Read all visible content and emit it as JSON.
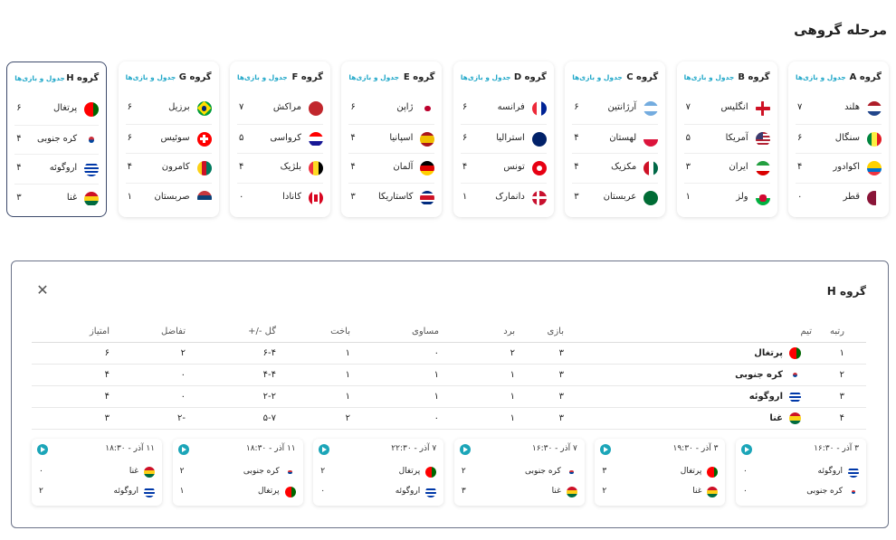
{
  "page_title": "مرحله گروهی",
  "group_link_label": "جدول و بازی‌ها",
  "groups": [
    {
      "name": "گروه A",
      "teams": [
        {
          "name": "هلند",
          "pts": "۷",
          "flag": "flag-netherlands"
        },
        {
          "name": "سنگال",
          "pts": "۶",
          "flag": "flag-senegal"
        },
        {
          "name": "اکوادور",
          "pts": "۴",
          "flag": "flag-ecuador"
        },
        {
          "name": "قطر",
          "pts": "۰",
          "flag": "flag-qatar"
        }
      ]
    },
    {
      "name": "گروه B",
      "teams": [
        {
          "name": "انگلیس",
          "pts": "۷",
          "flag": "flag-england"
        },
        {
          "name": "آمریکا",
          "pts": "۵",
          "flag": "flag-usa"
        },
        {
          "name": "ایران",
          "pts": "۳",
          "flag": "flag-iran"
        },
        {
          "name": "ولز",
          "pts": "۱",
          "flag": "flag-wales"
        }
      ]
    },
    {
      "name": "گروه C",
      "teams": [
        {
          "name": "آرژانتین",
          "pts": "۶",
          "flag": "flag-argentina"
        },
        {
          "name": "لهستان",
          "pts": "۴",
          "flag": "flag-poland"
        },
        {
          "name": "مکزیک",
          "pts": "۴",
          "flag": "flag-mexico"
        },
        {
          "name": "عربستان",
          "pts": "۳",
          "flag": "flag-saudi"
        }
      ]
    },
    {
      "name": "گروه D",
      "teams": [
        {
          "name": "فرانسه",
          "pts": "۶",
          "flag": "flag-france"
        },
        {
          "name": "استرالیا",
          "pts": "۶",
          "flag": "flag-australia"
        },
        {
          "name": "تونس",
          "pts": "۴",
          "flag": "flag-tunisia"
        },
        {
          "name": "دانمارک",
          "pts": "۱",
          "flag": "flag-denmark"
        }
      ]
    },
    {
      "name": "گروه E",
      "teams": [
        {
          "name": "ژاپن",
          "pts": "۶",
          "flag": "flag-japan"
        },
        {
          "name": "اسپانیا",
          "pts": "۴",
          "flag": "flag-spain"
        },
        {
          "name": "آلمان",
          "pts": "۴",
          "flag": "flag-germany"
        },
        {
          "name": "کاستاریکا",
          "pts": "۳",
          "flag": "flag-costarica"
        }
      ]
    },
    {
      "name": "گروه F",
      "teams": [
        {
          "name": "مراکش",
          "pts": "۷",
          "flag": "flag-morocco"
        },
        {
          "name": "کرواسی",
          "pts": "۵",
          "flag": "flag-croatia"
        },
        {
          "name": "بلژیک",
          "pts": "۴",
          "flag": "flag-belgium"
        },
        {
          "name": "کانادا",
          "pts": "۰",
          "flag": "flag-canada"
        }
      ]
    },
    {
      "name": "گروه G",
      "teams": [
        {
          "name": "برزیل",
          "pts": "۶",
          "flag": "flag-brazil"
        },
        {
          "name": "سوئیس",
          "pts": "۶",
          "flag": "flag-switzerland"
        },
        {
          "name": "کامرون",
          "pts": "۴",
          "flag": "flag-cameroon"
        },
        {
          "name": "صربستان",
          "pts": "۱",
          "flag": "flag-serbia"
        }
      ]
    },
    {
      "name": "گروه H",
      "teams": [
        {
          "name": "پرتغال",
          "pts": "۶",
          "flag": "flag-portugal"
        },
        {
          "name": "کره جنوبی",
          "pts": "۴",
          "flag": "flag-korea"
        },
        {
          "name": "اروگوئه",
          "pts": "۴",
          "flag": "flag-uruguay"
        },
        {
          "name": "غنا",
          "pts": "۳",
          "flag": "flag-ghana"
        }
      ]
    }
  ],
  "detail": {
    "title": "گروه H",
    "close_icon": "close-icon",
    "headers": {
      "rank": "رتبه",
      "team": "تیم",
      "played": "بازی",
      "won": "برد",
      "draw": "مساوی",
      "lost": "باخت",
      "goals": "گل -/+",
      "diff": "تفاضل",
      "pts": "امتیاز"
    },
    "rows": [
      {
        "rank": "۱",
        "team": "پرتغال",
        "flag": "flag-portugal",
        "played": "۳",
        "won": "۲",
        "draw": "۰",
        "lost": "۱",
        "goals": "۶-۴",
        "diff": "۲",
        "pts": "۶"
      },
      {
        "rank": "۲",
        "team": "کره جنوبی",
        "flag": "flag-korea",
        "played": "۳",
        "won": "۱",
        "draw": "۱",
        "lost": "۱",
        "goals": "۴-۴",
        "diff": "۰",
        "pts": "۴"
      },
      {
        "rank": "۳",
        "team": "اروگوئه",
        "flag": "flag-uruguay",
        "played": "۳",
        "won": "۱",
        "draw": "۱",
        "lost": "۱",
        "goals": "۲-۲",
        "diff": "۰",
        "pts": "۴"
      },
      {
        "rank": "۴",
        "team": "غنا",
        "flag": "flag-ghana",
        "played": "۳",
        "won": "۱",
        "draw": "۰",
        "lost": "۲",
        "goals": "۵-۷",
        "diff": "-۲",
        "pts": "۳"
      }
    ],
    "matches": [
      {
        "date": "۳ آذر - ۱۶:۳۰",
        "home": {
          "name": "اروگوئه",
          "flag": "flag-uruguay",
          "score": "۰"
        },
        "away": {
          "name": "کره جنوبی",
          "flag": "flag-korea",
          "score": "۰"
        }
      },
      {
        "date": "۳ آذر - ۱۹:۳۰",
        "home": {
          "name": "پرتغال",
          "flag": "flag-portugal",
          "score": "۳"
        },
        "away": {
          "name": "غنا",
          "flag": "flag-ghana",
          "score": "۲"
        }
      },
      {
        "date": "۷ آذر - ۱۶:۳۰",
        "home": {
          "name": "کره جنوبی",
          "flag": "flag-korea",
          "score": "۲"
        },
        "away": {
          "name": "غنا",
          "flag": "flag-ghana",
          "score": "۳"
        }
      },
      {
        "date": "۷ آذر - ۲۲:۳۰",
        "home": {
          "name": "پرتغال",
          "flag": "flag-portugal",
          "score": "۲"
        },
        "away": {
          "name": "اروگوئه",
          "flag": "flag-uruguay",
          "score": "۰"
        }
      },
      {
        "date": "۱۱ آذر - ۱۸:۳۰",
        "home": {
          "name": "کره جنوبی",
          "flag": "flag-korea",
          "score": "۲"
        },
        "away": {
          "name": "پرتغال",
          "flag": "flag-portugal",
          "score": "۱"
        }
      },
      {
        "date": "۱۱ آذر - ۱۸:۳۰",
        "home": {
          "name": "غنا",
          "flag": "flag-ghana",
          "score": "۰"
        },
        "away": {
          "name": "اروگوئه",
          "flag": "flag-uruguay",
          "score": "۲"
        }
      }
    ]
  },
  "colors": {
    "accent": "#22a8c9",
    "play": "#1ba5b8",
    "active_border": "#3d4a6b"
  }
}
